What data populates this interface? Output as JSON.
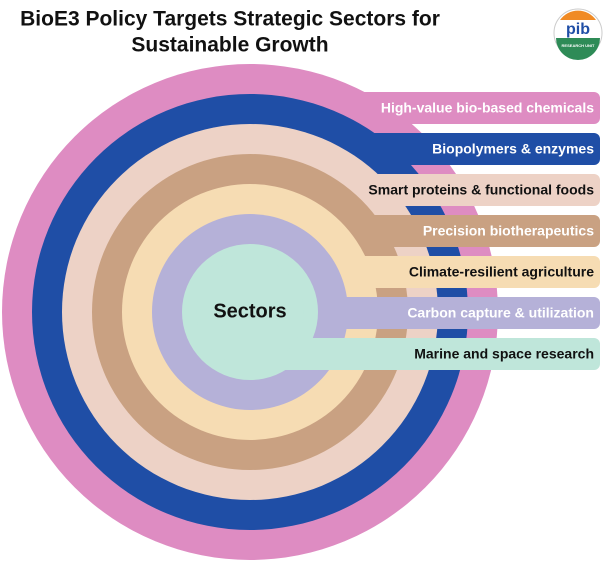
{
  "header": {
    "title_line1": "BioE3 Policy Targets Strategic Sectors for",
    "title_line2": "Sustainable Growth"
  },
  "logo": {
    "text": "pib",
    "subtext": "RESEARCH UNIT"
  },
  "center": {
    "label": "Sectors",
    "color": "#bfe6da"
  },
  "sectors": [
    {
      "label": "High-value bio-based chemicals",
      "color": "#de8cc2",
      "text_color": "#ffffff"
    },
    {
      "label": "Biopolymers & enzymes",
      "color": "#1f4ea6",
      "text_color": "#ffffff"
    },
    {
      "label": "Smart proteins & functional foods",
      "color": "#edd2c6",
      "text_color": "#111111"
    },
    {
      "label": "Precision biotherapeutics",
      "color": "#c9a182",
      "text_color": "#ffffff"
    },
    {
      "label": "Climate-resilient agriculture",
      "color": "#f6dcb3",
      "text_color": "#111111"
    },
    {
      "label": "Carbon capture & utilization",
      "color": "#b5b1d8",
      "text_color": "#ffffff"
    },
    {
      "label": "Marine and space research",
      "color": "#bfe6da",
      "text_color": "#111111"
    }
  ]
}
